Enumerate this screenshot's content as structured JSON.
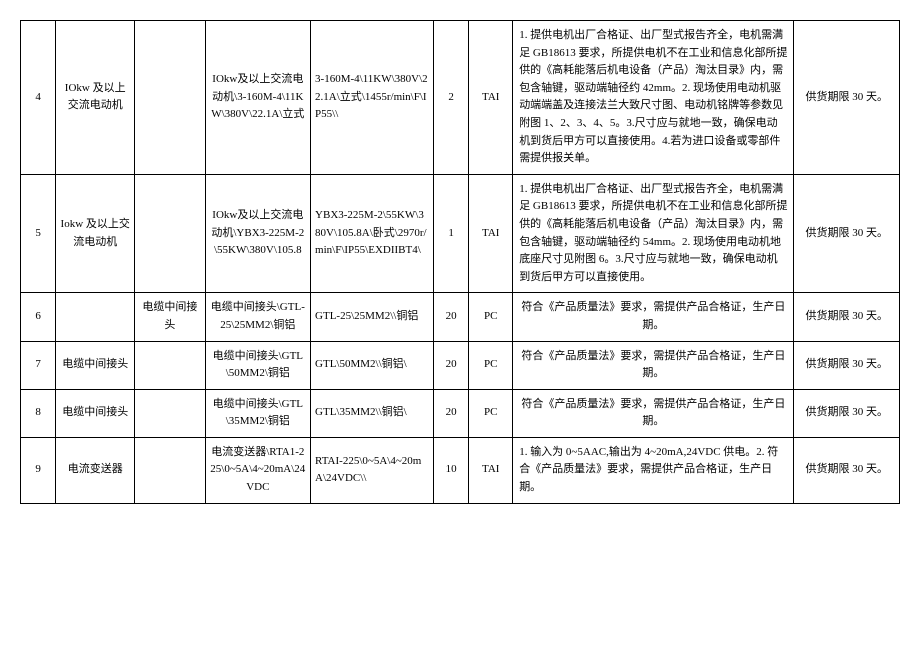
{
  "rows": [
    {
      "idx": "4",
      "name": "IOkw 及以上交流电动机",
      "name2": "",
      "spec": "IOkw及以上交流电动机\\3-160M-4\\11KW\\380V\\22.1A\\立式",
      "model": "3-160M-4\\11KW\\380V\\22.1A\\立式\\1455r/min\\F\\IP55\\\\",
      "qty": "2",
      "unit": "TAI",
      "req": "1. 提供电机出厂合格证、出厂型式报告齐全，电机需满足 GB18613 要求，所提供电机不在工业和信息化部所提供的《高耗能落后机电设备（产品）淘汰目录》内，需包含轴键，驱动端轴径约 42mm。2. 现场使用电动机驱动端端盖及连接法兰大致尺寸图、电动机铭牌等参数见附图 1、2、3、4、5。3.尺寸应与就地一致，确保电动机到货后甲方可以直接使用。4.若为进口设备或零部件需提供报关单。",
      "deliv": "供货期限 30 天。"
    },
    {
      "idx": "5",
      "name": "Iokw 及以上交流电动机",
      "name2": "",
      "spec": "IOkw及以上交流电动机\\YBX3-225M-2\\55KW\\380V\\105.8",
      "model": "YBX3-225M-2\\55KW\\380V\\105.8A\\卧式\\2970r/min\\F\\IP55\\EXDIIBT4\\",
      "qty": "1",
      "unit": "TAI",
      "req": "1. 提供电机出厂合格证、出厂型式报告齐全，电机需满足 GB18613 要求，所提供电机不在工业和信息化部所提供的《高耗能落后机电设备（产品）淘汰目录》内，需包含轴键，驱动端轴径约 54mm。2. 现场使用电动机地底座尺寸见附图 6。3.尺寸应与就地一致，确保电动机到货后甲方可以直接使用。",
      "deliv": "供货期限 30 天。"
    },
    {
      "idx": "6",
      "name": "",
      "name2": "电缆中间接头",
      "spec": "电缆中间接头\\GTL-25\\25MM2\\铜铝",
      "model": "GTL-25\\25MM2\\\\铜铝",
      "qty": "20",
      "unit": "PC",
      "req": "符合《产品质量法》要求，需提供产品合格证，生产日期。",
      "deliv": "供货期限 30 天。"
    },
    {
      "idx": "7",
      "name": "电缆中间接头",
      "name2": "",
      "spec": "电缆中间接头\\GTL\\50MM2\\铜铝",
      "model": "GTL\\50MM2\\\\铜铝\\",
      "qty": "20",
      "unit": "PC",
      "req": "符合《产品质量法》要求，需提供产品合格证，生产日期。",
      "deliv": "供货期限 30 天。"
    },
    {
      "idx": "8",
      "name": "电缆中间接头",
      "name2": "",
      "spec": "电缆中间接头\\GTL\\35MM2\\铜铝",
      "model": "GTL\\35MM2\\\\铜铝\\",
      "qty": "20",
      "unit": "PC",
      "req": "符合《产品质量法》要求，需提供产品合格证，生产日期。",
      "deliv": "供货期限 30 天。"
    },
    {
      "idx": "9",
      "name": "电流变送器",
      "name2": "",
      "spec": "电流变送器\\RTA1-225\\0~5A\\4~20mA\\24VDC",
      "model": "RTAI-225\\0~5A\\4~20mA\\24VDC\\\\",
      "qty": "10",
      "unit": "TAI",
      "req": "1. 输入为 0~5AAC,输出为 4~20mA,24VDC 供电。2. 符合《产品质量法》要求，需提供产品合格证，生产日期。",
      "deliv": "供货期限 30 天。"
    }
  ]
}
